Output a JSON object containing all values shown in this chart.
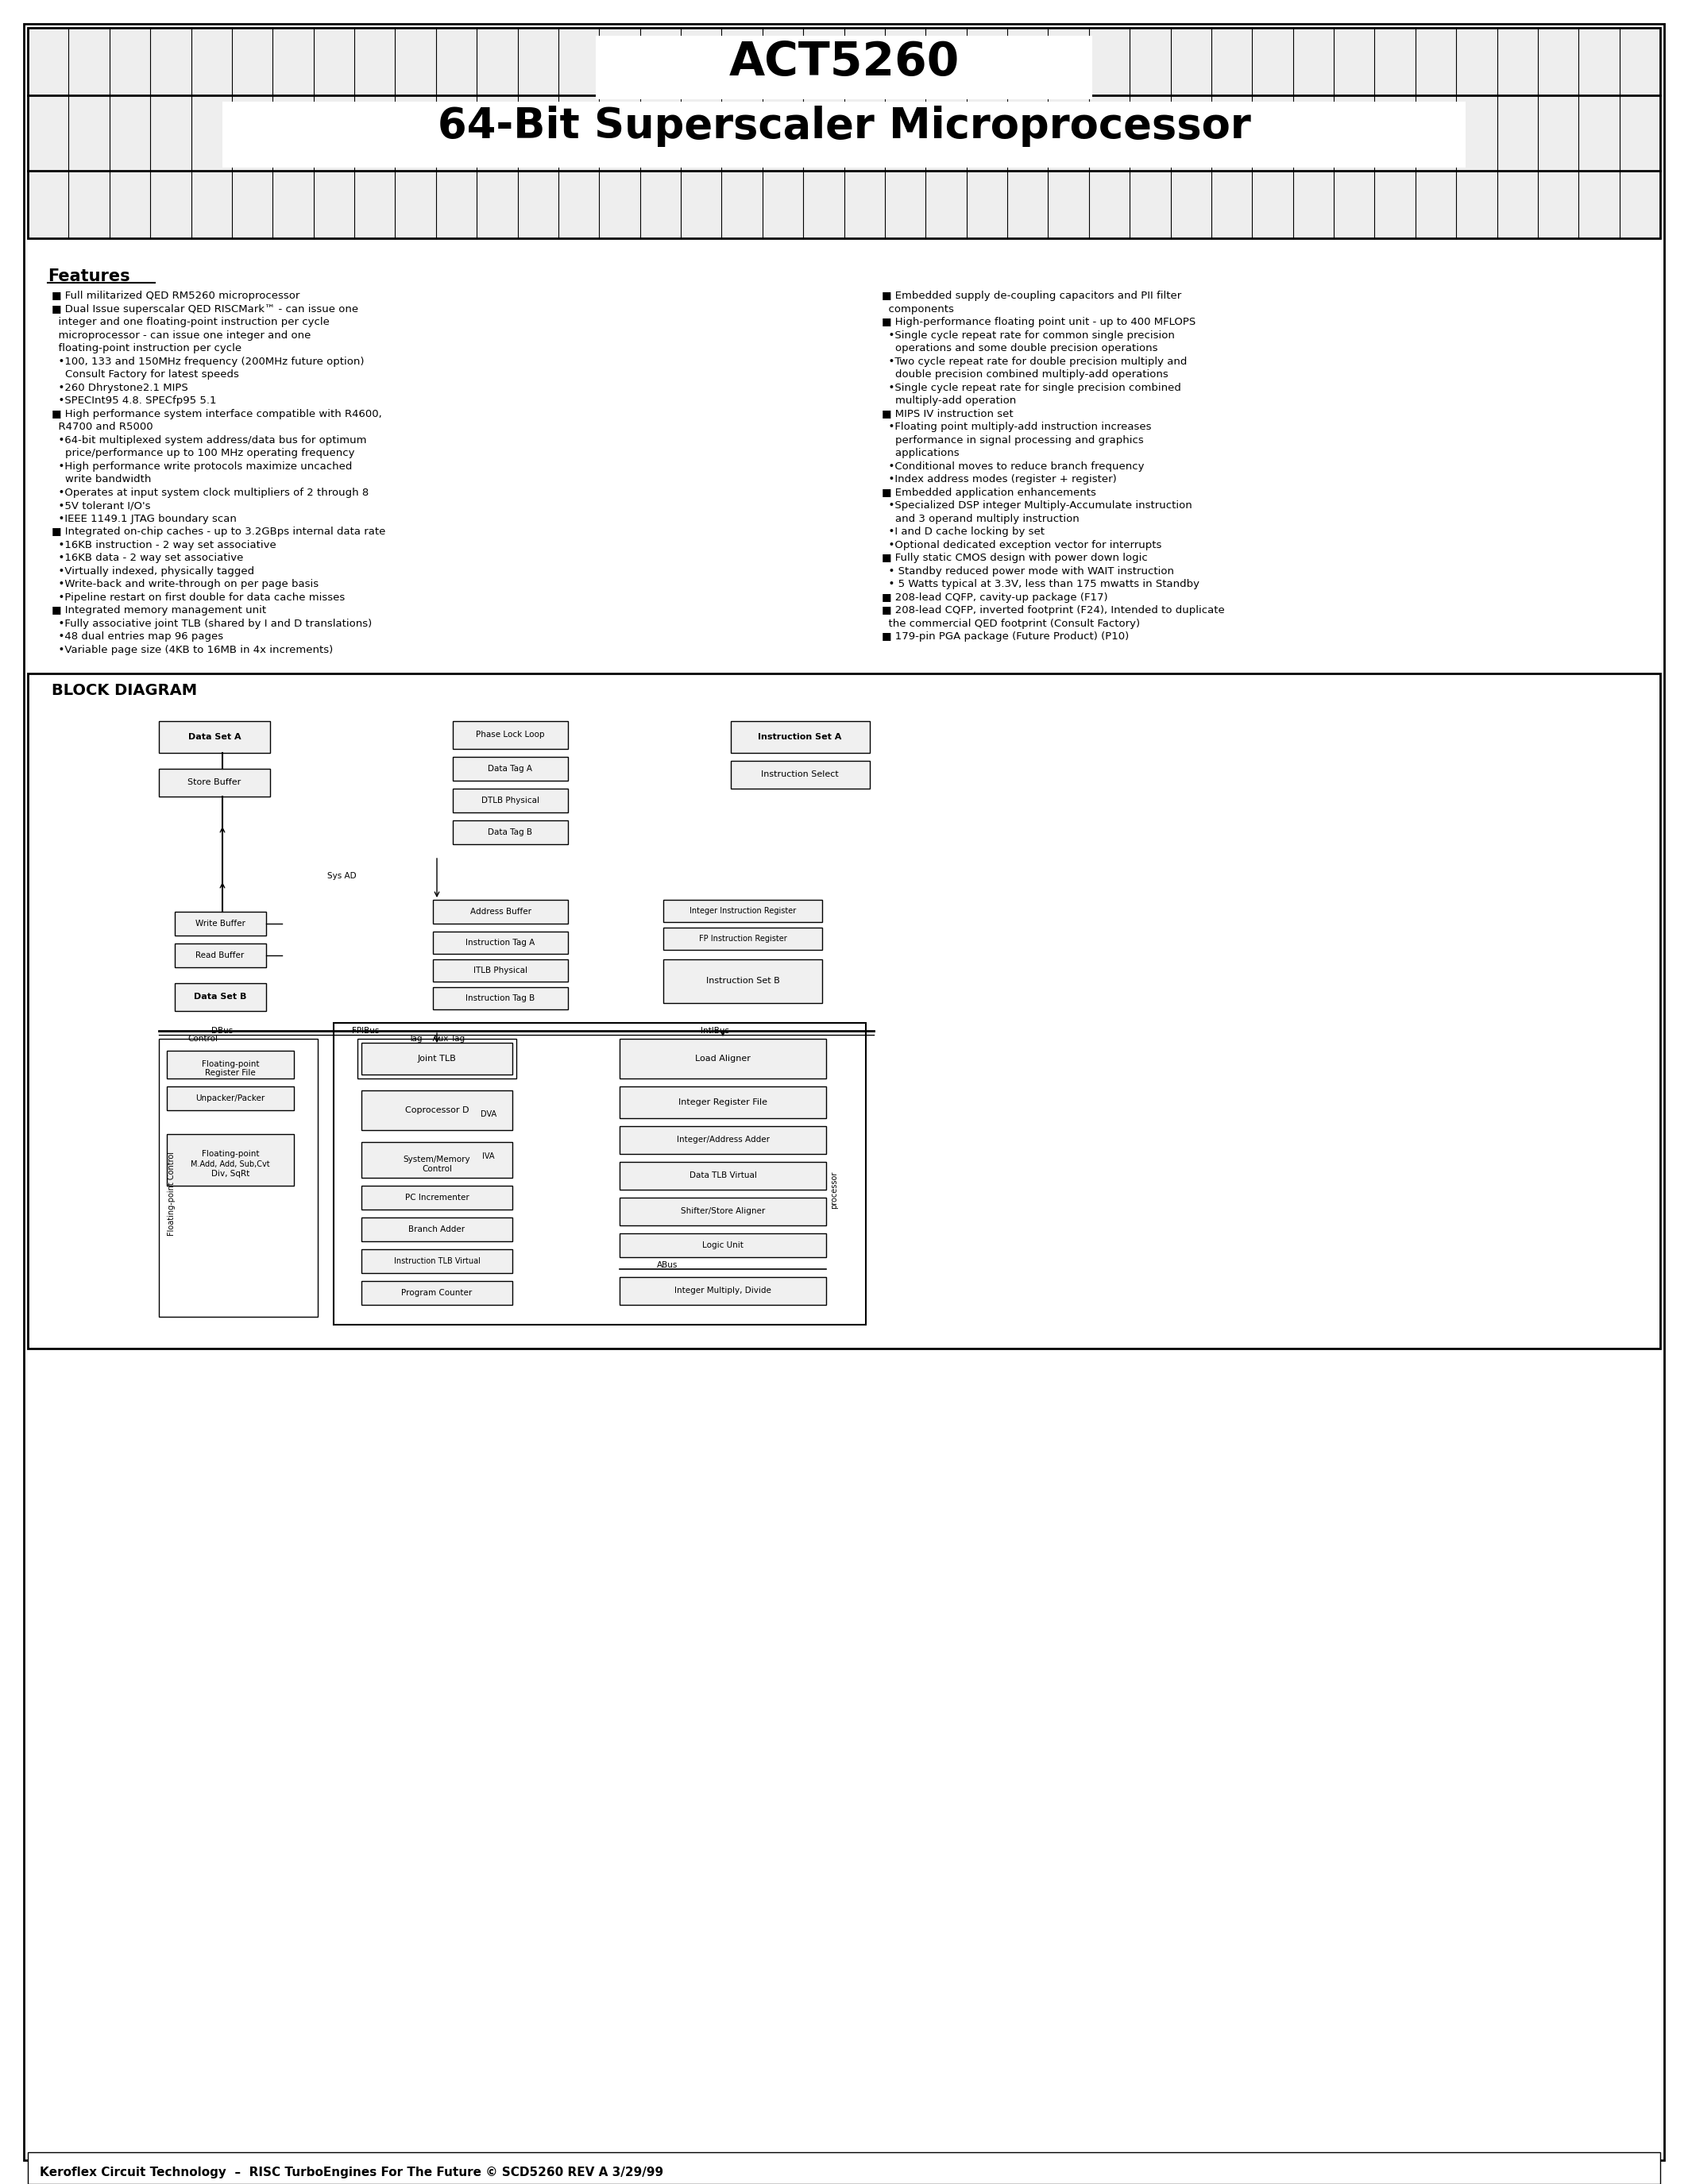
{
  "title1": "ACT5260",
  "title2": "64-Bit Superscaler Microprocessor",
  "features_title": "Features",
  "footer": "Κeroflex Circuit Technology  –  RISC TurboEngines For The Future © SCD5260 REV A 3/29/99",
  "left_features": [
    "Full militarized QED RM5260 microprocessor",
    "Dual Issue superscalar QED RISCMark™ - can issue one\n  integer and one floating-point instruction per cycle\n  microprocessor - can issue one integer and one\n  floating-point instruction per cycle",
    "  •100, 133 and 150MHz frequency (200MHz future option)\n    Consult Factory for latest speeds",
    "  •260 Dhrystone2.1 MIPS",
    "  •SPECInt95 4.8. SPECfp95 5.1",
    "High performance system interface compatible with R4600,\n  R4700 and R5000",
    "  •64-bit multiplexed system address/data bus for optimum\n    price/performance up to 100 MHz operating frequency",
    "  •High performance write protocols maximize uncached\n    write bandwidth",
    "  •Operates at input system clock multipliers of 2 through 8",
    "  •5V tolerant I/O's",
    "  •IEEE 1149.1 JTAG boundary scan",
    "Integrated on-chip caches - up to 3.2GBps internal data rate",
    "  •16KB instruction - 2 way set associative",
    "  •16KB data - 2 way set associative",
    "  •Virtually indexed, physically tagged",
    "  •Write-back and write-through on per page basis",
    "  •Pipeline restart on first double for data cache misses",
    "Integrated memory management unit",
    "  •Fully associative joint TLB (shared by I and D translations)",
    "  •48 dual entries map 96 pages",
    "  •Variable page size (4KB to 16MB in 4x increments)"
  ],
  "right_features": [
    "Embedded supply de-coupling capacitors and PII filter\n  components",
    "High-performance floating point unit - up to 400 MFLOPS",
    "  •Single cycle repeat rate for common single precision\n    operations and some double precision operations",
    "  •Two cycle repeat rate for double precision multiply and\n    double precision combined multiply-add operations",
    "  •Single cycle repeat rate for single precision combined\n    multiply-add operation",
    "MIPS IV instruction set",
    "  •Floating point multiply-add instruction increases\n    performance in signal processing and graphics\n    applications",
    "  •Conditional moves to reduce branch frequency",
    "  •Index address modes (register + register)",
    "Embedded application enhancements",
    "  •Specialized DSP integer Multiply-Accumulate instruction\n    and 3 operand multiply instruction",
    "  •I and D cache locking by set",
    "  •Optional dedicated exception vector for interrupts",
    "Fully static CMOS design with power down logic",
    "  • Standby reduced power mode with WAIT instruction",
    "  • 5 Watts typical at 3.3V, less than 175 mwatts in Standby",
    "208-lead CQFP, cavity-up package (F17)",
    "208-lead CQFP, inverted footprint (F24), Intended to duplicate\n  the commercial QED footprint (Consult Factory)",
    "179-pin PGA package (Future Product) (P10)"
  ],
  "block_diagram_title": "BLOCK DIAGRAM",
  "bg_color": "#ffffff",
  "header_bg": "#e8e8e8",
  "text_color": "#000000"
}
